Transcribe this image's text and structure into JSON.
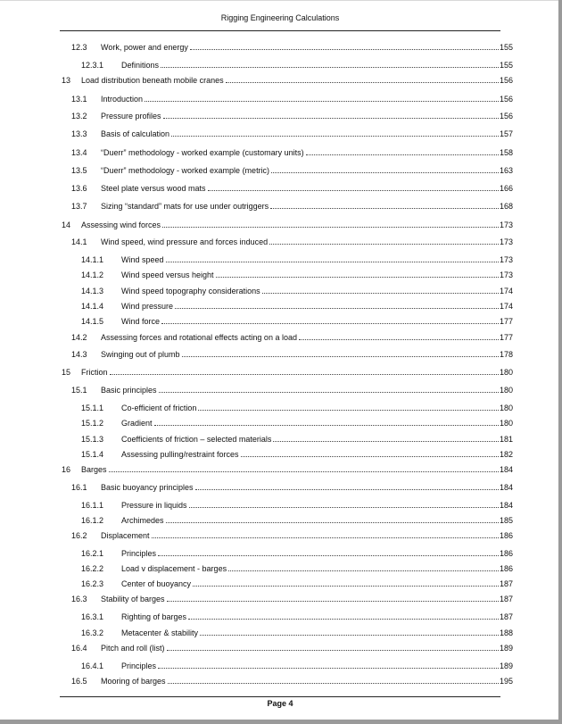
{
  "header": {
    "title": "Rigging Engineering Calculations"
  },
  "footer": {
    "page_label": "Page 4"
  },
  "toc": [
    {
      "num": "12.3",
      "title": "Work, power and energy",
      "page": "155",
      "level": 2
    },
    {
      "num": "12.3.1",
      "title": "Definitions",
      "page": "155",
      "level": 3
    },
    {
      "num": "13",
      "title": "Load distribution beneath mobile cranes",
      "page": "156",
      "level": 1
    },
    {
      "num": "13.1",
      "title": "Introduction",
      "page": "156",
      "level": 2
    },
    {
      "num": "13.2",
      "title": "Pressure profiles",
      "page": "156",
      "level": 2
    },
    {
      "num": "13.3",
      "title": "Basis of calculation",
      "page": "157",
      "level": 2
    },
    {
      "num": "13.4",
      "title": "“Duerr” methodology - worked example (customary units)",
      "page": "158",
      "level": 2
    },
    {
      "num": "13.5",
      "title": "“Duerr” methodology - worked example (metric)",
      "page": "163",
      "level": 2
    },
    {
      "num": "13.6",
      "title": "Steel plate versus wood mats",
      "page": "166",
      "level": 2
    },
    {
      "num": "13.7",
      "title": "Sizing “standard” mats for use under outriggers",
      "page": "168",
      "level": 2
    },
    {
      "num": "14",
      "title": "Assessing wind forces",
      "page": "173",
      "level": 1
    },
    {
      "num": "14.1",
      "title": "Wind speed, wind pressure and forces induced",
      "page": "173",
      "level": 2
    },
    {
      "num": "14.1.1",
      "title": "Wind speed",
      "page": "173",
      "level": 3
    },
    {
      "num": "14.1.2",
      "title": "Wind speed versus height",
      "page": "173",
      "level": 3
    },
    {
      "num": "14.1.3",
      "title": "Wind speed topography considerations",
      "page": "174",
      "level": 3
    },
    {
      "num": "14.1.4",
      "title": "Wind pressure",
      "page": "174",
      "level": 3
    },
    {
      "num": "14.1.5",
      "title": "Wind force",
      "page": "177",
      "level": 3
    },
    {
      "num": "14.2",
      "title": "Assessing forces and rotational effects acting on a load",
      "page": "177",
      "level": 2
    },
    {
      "num": "14.3",
      "title": "Swinging out of plumb",
      "page": "178",
      "level": 2
    },
    {
      "num": "15",
      "title": "Friction",
      "page": "180",
      "level": 1
    },
    {
      "num": "15.1",
      "title": "Basic principles",
      "page": "180",
      "level": 2
    },
    {
      "num": "15.1.1",
      "title": "Co-efficient of friction",
      "page": "180",
      "level": 3
    },
    {
      "num": "15.1.2",
      "title": "Gradient",
      "page": "180",
      "level": 3
    },
    {
      "num": "15.1.3",
      "title": "Coefficients of friction – selected materials",
      "page": "181",
      "level": 3
    },
    {
      "num": "15.1.4",
      "title": "Assessing pulling/restraint forces",
      "page": "182",
      "level": 3
    },
    {
      "num": "16",
      "title": "Barges",
      "page": "184",
      "level": 1
    },
    {
      "num": "16.1",
      "title": "Basic buoyancy principles",
      "page": "184",
      "level": 2
    },
    {
      "num": "16.1.1",
      "title": "Pressure in liquids",
      "page": "184",
      "level": 3
    },
    {
      "num": "16.1.2",
      "title": "Archimedes",
      "page": "185",
      "level": 3
    },
    {
      "num": "16.2",
      "title": "Displacement",
      "page": "186",
      "level": 2
    },
    {
      "num": "16.2.1",
      "title": "Principles",
      "page": "186",
      "level": 3
    },
    {
      "num": "16.2.2",
      "title": "Load v displacement - barges",
      "page": "186",
      "level": 3
    },
    {
      "num": "16.2.3",
      "title": "Center of buoyancy",
      "page": "187",
      "level": 3
    },
    {
      "num": "16.3",
      "title": "Stability of barges",
      "page": "187",
      "level": 2
    },
    {
      "num": "16.3.1",
      "title": "Righting of barges",
      "page": "187",
      "level": 3
    },
    {
      "num": "16.3.2",
      "title": "Metacenter & stability",
      "page": "188",
      "level": 3
    },
    {
      "num": "16.4",
      "title": "Pitch and roll (list)",
      "page": "189",
      "level": 2
    },
    {
      "num": "16.4.1",
      "title": "Principles",
      "page": "189",
      "level": 3
    },
    {
      "num": "16.5",
      "title": "Mooring of barges",
      "page": "195",
      "level": 2
    }
  ]
}
